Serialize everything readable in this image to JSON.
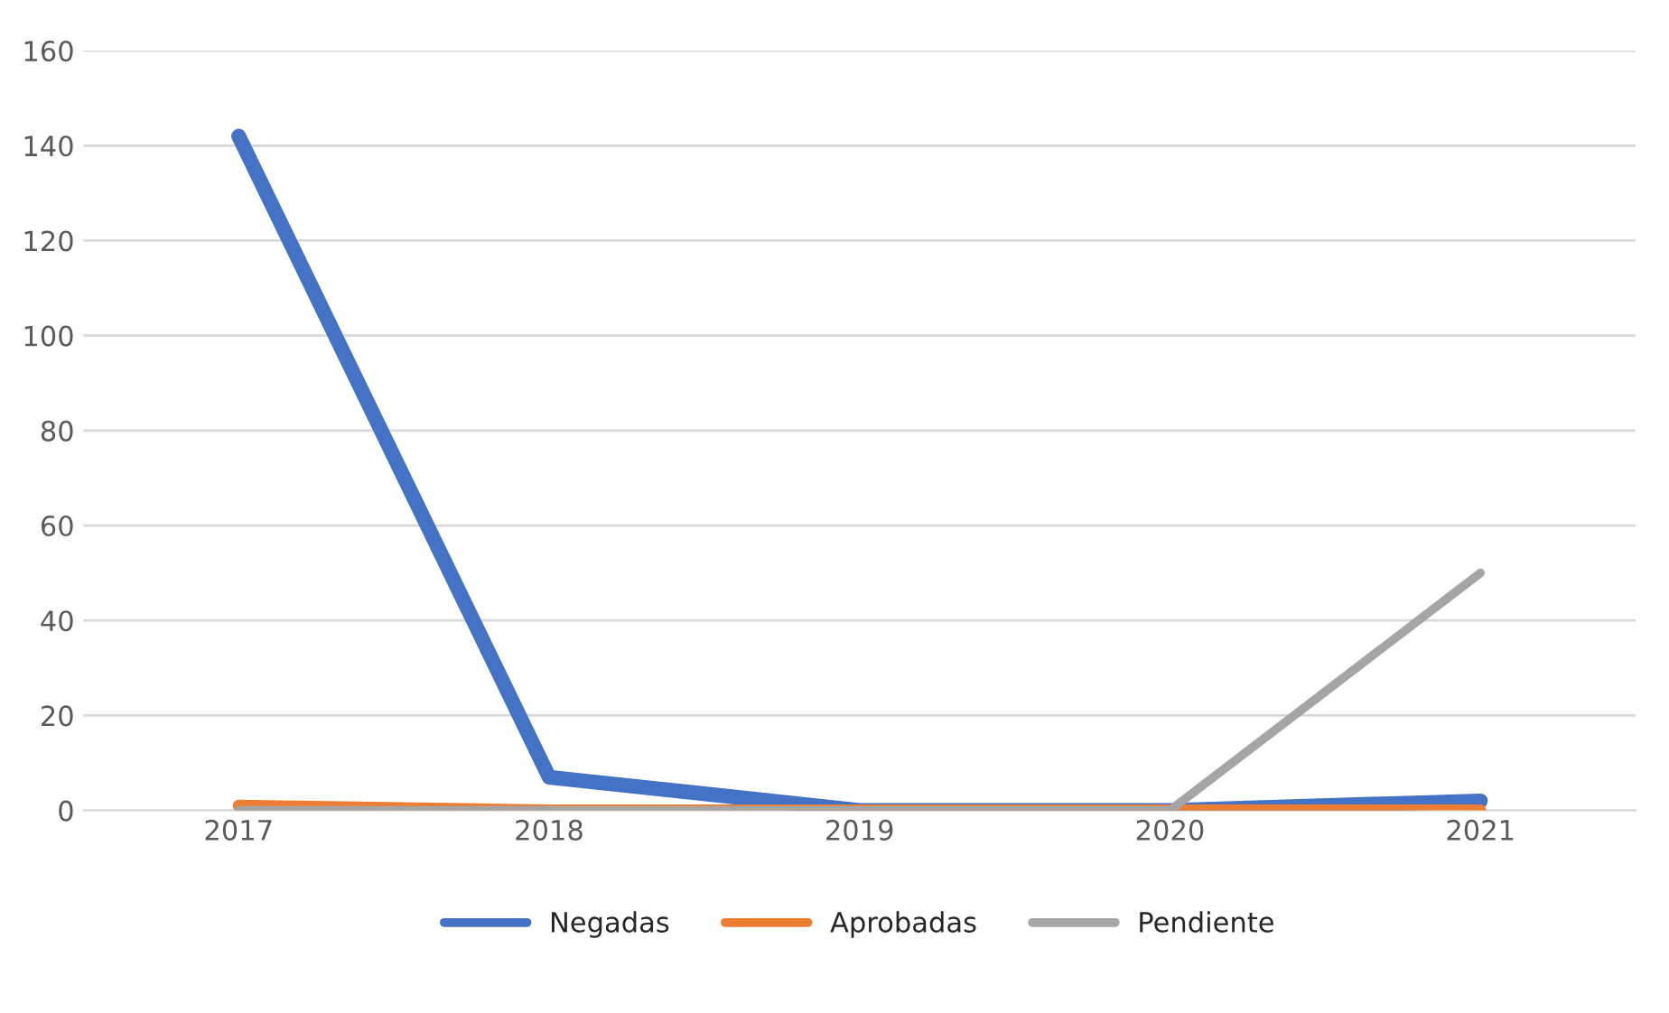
{
  "chart_data": {
    "type": "line",
    "categories": [
      "2017",
      "2018",
      "2019",
      "2020",
      "2021"
    ],
    "series": [
      {
        "name": "Negadas",
        "color": "#4472c4",
        "values": [
          142,
          7,
          0,
          0,
          2
        ]
      },
      {
        "name": "Aprobadas",
        "color": "#ed7d31",
        "values": [
          1,
          0,
          0,
          0,
          0
        ]
      },
      {
        "name": "Pendiente",
        "color": "#a5a5a5",
        "values": [
          0,
          0,
          0,
          0,
          50
        ]
      }
    ],
    "ylim": [
      0,
      160
    ],
    "yticks": [
      0,
      20,
      40,
      60,
      80,
      100,
      120,
      140,
      160
    ],
    "grid": "y",
    "legend": "bottom",
    "marker": "none",
    "line_style": "solid"
  }
}
